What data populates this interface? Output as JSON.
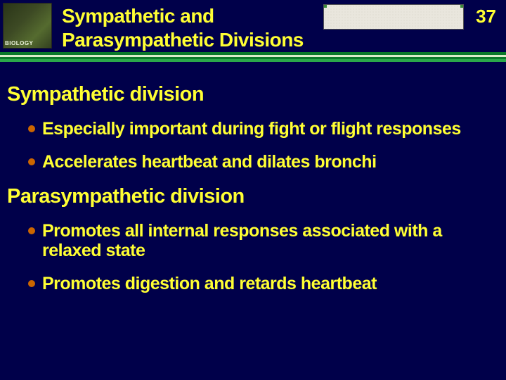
{
  "header": {
    "logo_text": "BIOLOGY",
    "title_line1": "Sympathetic and",
    "title_line2": "Parasympathetic Divisions",
    "page_number": "37"
  },
  "colors": {
    "slide_bg": "#00004a",
    "text_color": "#ffff33",
    "bullet_color": "#cc6600",
    "accent_stripe1": "#0a7a2a",
    "accent_stripe2": "#d9edc9",
    "accent_stripe3": "#0a7a2a",
    "accent_stripe4": "#2aa84a",
    "logo_bg": "#3d4a24"
  },
  "sections": [
    {
      "heading": "Sympathetic division",
      "bullets": [
        "Especially important during fight or flight responses",
        "Accelerates heartbeat and dilates bronchi"
      ]
    },
    {
      "heading": "Parasympathetic division",
      "bullets": [
        "Promotes all internal responses associated with a relaxed state",
        "Promotes digestion and retards heartbeat"
      ]
    }
  ]
}
